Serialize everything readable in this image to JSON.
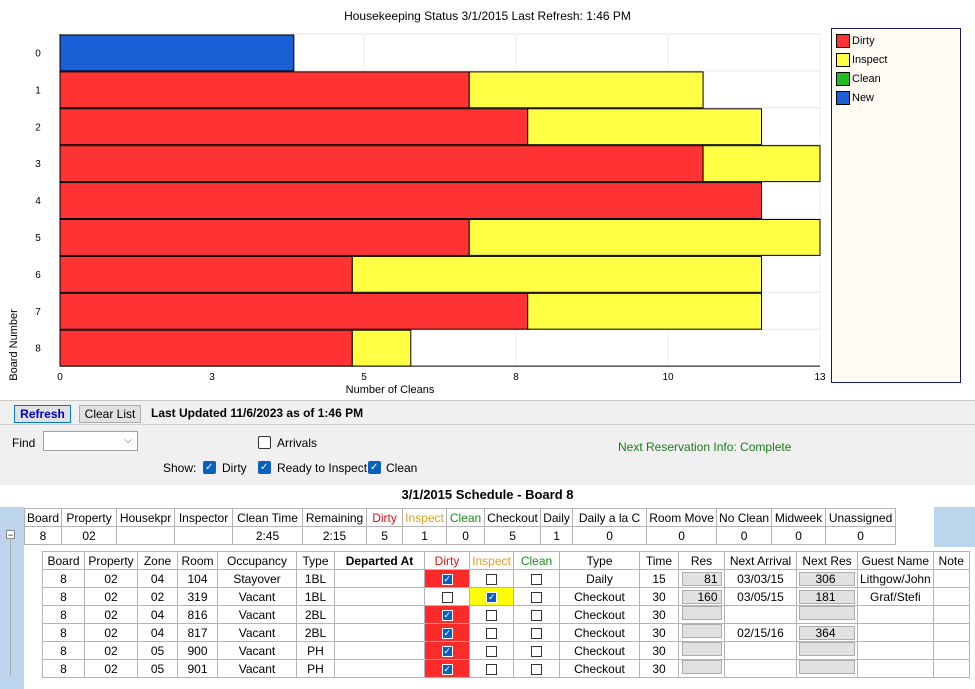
{
  "chart_title": "Housekeeping Status 3/1/2015  Last Refresh: 1:46 PM",
  "legend": [
    {
      "label": "Dirty",
      "color": "#ff3333"
    },
    {
      "label": "Inspect",
      "color": "#ffff44"
    },
    {
      "label": "Clean",
      "color": "#22bb22"
    },
    {
      "label": "New",
      "color": "#1a5fd6"
    }
  ],
  "chart_data": {
    "type": "bar",
    "orientation": "horizontal",
    "stacked": true,
    "title": "Housekeeping Status 3/1/2015  Last Refresh: 1:46 PM",
    "xlabel": "Number of Cleans",
    "ylabel": "Board Number",
    "xlim": [
      0,
      13
    ],
    "xticks": [
      "0",
      "3",
      "5",
      "8",
      "10",
      "13"
    ],
    "xtick_values": [
      0,
      2.6,
      5.2,
      7.8,
      10.4,
      13
    ],
    "categories": [
      "0",
      "1",
      "2",
      "3",
      "4",
      "5",
      "6",
      "7",
      "8"
    ],
    "series": [
      {
        "name": "Dirty",
        "color": "#ff3333",
        "values": [
          0,
          7,
          8,
          11,
          12,
          7,
          5,
          8,
          5
        ]
      },
      {
        "name": "Inspect",
        "color": "#ffff44",
        "values": [
          0,
          4,
          4,
          2,
          0,
          6,
          7,
          4,
          1
        ]
      },
      {
        "name": "Clean",
        "color": "#22bb22",
        "values": [
          0,
          0,
          0,
          0,
          0,
          0,
          0,
          0,
          0
        ]
      },
      {
        "name": "New",
        "color": "#1a5fd6",
        "values": [
          4,
          0,
          0,
          0,
          0,
          0,
          0,
          0,
          0
        ]
      }
    ],
    "grid": true,
    "legend_position": "right"
  },
  "toolbar": {
    "refresh_label": "Refresh",
    "clear_label": "Clear List",
    "last_updated": "Last Updated 11/6/2023 as of 1:46 PM"
  },
  "filters": {
    "find_label": "Find",
    "find_value": "",
    "arrivals_label": "Arrivals",
    "show_label": "Show:",
    "dirty_label": "Dirty",
    "ready_label": "Ready to Inspect",
    "clean_label": "Clean",
    "next_res_info": "Next Reservation Info: Complete"
  },
  "schedule": {
    "title": "3/1/2015 Schedule - Board 8",
    "summary_headers": [
      "Board",
      "Property",
      "Housekpr",
      "Inspector",
      "Clean Time",
      "Remaining",
      "Dirty",
      "Inspect",
      "Clean",
      "Checkout",
      "Daily",
      "Daily a la C",
      "Room Move",
      "No Clean",
      "Midweek",
      "Unassigned"
    ],
    "summary_values": [
      "8",
      "02",
      "",
      "",
      "2:45",
      "2:15",
      "5",
      "1",
      "0",
      "5",
      "1",
      "0",
      "0",
      "0",
      "0",
      "0"
    ],
    "detail_headers": [
      "Board",
      "Property",
      "Zone",
      "Room",
      "Occupancy",
      "Type",
      "Departed At",
      "Dirty",
      "Inspect",
      "Clean",
      "Type",
      "Time",
      "Res",
      "Next Arrival",
      "Next Res",
      "Guest Name",
      "Note"
    ],
    "rows": [
      {
        "board": "8",
        "property": "02",
        "zone": "04",
        "room": "104",
        "occupancy": "Stayover",
        "type": "1BL",
        "departed": "",
        "dirty": true,
        "inspect": false,
        "clean": false,
        "clean_type": "Daily",
        "time": "15",
        "res": "81",
        "next_arrival": "03/03/15",
        "next_res": "306",
        "guest": "Lithgow/John",
        "note": ""
      },
      {
        "board": "8",
        "property": "02",
        "zone": "02",
        "room": "319",
        "occupancy": "Vacant",
        "type": "1BL",
        "departed": "",
        "dirty": false,
        "inspect": true,
        "clean": false,
        "clean_type": "Checkout",
        "time": "30",
        "res": "160",
        "next_arrival": "03/05/15",
        "next_res": "181",
        "guest": "Graf/Stefi",
        "note": ""
      },
      {
        "board": "8",
        "property": "02",
        "zone": "04",
        "room": "816",
        "occupancy": "Vacant",
        "type": "2BL",
        "departed": "",
        "dirty": true,
        "inspect": false,
        "clean": false,
        "clean_type": "Checkout",
        "time": "30",
        "res": "",
        "next_arrival": "",
        "next_res": "",
        "guest": "",
        "note": ""
      },
      {
        "board": "8",
        "property": "02",
        "zone": "04",
        "room": "817",
        "occupancy": "Vacant",
        "type": "2BL",
        "departed": "",
        "dirty": true,
        "inspect": false,
        "clean": false,
        "clean_type": "Checkout",
        "time": "30",
        "res": "",
        "next_arrival": "02/15/16",
        "next_res": "364",
        "guest": "",
        "note": ""
      },
      {
        "board": "8",
        "property": "02",
        "zone": "05",
        "room": "900",
        "occupancy": "Vacant",
        "type": "PH",
        "departed": "",
        "dirty": true,
        "inspect": false,
        "clean": false,
        "clean_type": "Checkout",
        "time": "30",
        "res": "",
        "next_arrival": "",
        "next_res": "",
        "guest": "",
        "note": ""
      },
      {
        "board": "8",
        "property": "02",
        "zone": "05",
        "room": "901",
        "occupancy": "Vacant",
        "type": "PH",
        "departed": "",
        "dirty": true,
        "inspect": false,
        "clean": false,
        "clean_type": "Checkout",
        "time": "30",
        "res": "",
        "next_arrival": "",
        "next_res": "",
        "guest": "",
        "note": ""
      }
    ],
    "header_colors": {
      "dirty": "#e01010",
      "inspect": "#e0a020",
      "clean": "#1a8a1a"
    }
  }
}
